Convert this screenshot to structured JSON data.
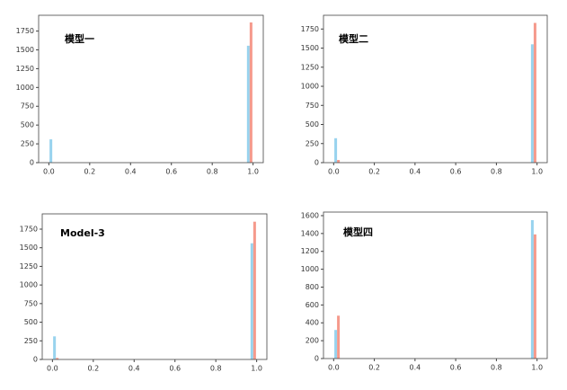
{
  "chart_data": [
    {
      "type": "histogram",
      "annotation": "模型一",
      "bins": [
        0,
        0.0333,
        0.0667,
        0.1,
        0.1333,
        0.1667,
        0.2,
        0.2333,
        0.2667,
        0.3,
        0.3333,
        0.3667,
        0.4,
        0.4333,
        0.4667,
        0.5,
        0.5333,
        0.5667,
        0.6,
        0.6333,
        0.6667,
        0.7,
        0.7333,
        0.7667,
        0.8,
        0.8333,
        0.8667,
        0.9,
        0.9333,
        0.9667,
        1
      ],
      "series": [
        {
          "color": "#98d3ee",
          "values": [
            310,
            0,
            0,
            0,
            0,
            0,
            0,
            0,
            0,
            0,
            0,
            0,
            0,
            0,
            0,
            0,
            0,
            0,
            0,
            0,
            0,
            0,
            0,
            0,
            0,
            0,
            0,
            0,
            0,
            1555
          ]
        },
        {
          "color": "#f59a8c",
          "values": [
            0,
            0,
            0,
            0,
            0,
            0,
            0,
            0,
            0,
            0,
            0,
            0,
            0,
            0,
            0,
            0,
            0,
            0,
            0,
            0,
            0,
            0,
            0,
            0,
            0,
            0,
            0,
            0,
            0,
            1865
          ]
        }
      ],
      "xlim": [
        -0.05,
        1.05
      ],
      "ylim": [
        0,
        1960
      ],
      "xticks": [
        {
          "value": 0,
          "label": "0.0"
        },
        0.2,
        0.4,
        0.6,
        0.8,
        {
          "value": 1,
          "label": "1.0"
        }
      ],
      "yticks": [
        0,
        250,
        500,
        750,
        1000,
        1250,
        1500,
        1750
      ]
    },
    {
      "type": "histogram",
      "annotation": "模型二",
      "bins": [
        0,
        0.0333,
        0.0667,
        0.1,
        0.1333,
        0.1667,
        0.2,
        0.2333,
        0.2667,
        0.3,
        0.3333,
        0.3667,
        0.4,
        0.4333,
        0.4667,
        0.5,
        0.5333,
        0.5667,
        0.6,
        0.6333,
        0.6667,
        0.7,
        0.7333,
        0.7667,
        0.8,
        0.8333,
        0.8667,
        0.9,
        0.9333,
        0.9667,
        1
      ],
      "series": [
        {
          "color": "#98d3ee",
          "values": [
            320,
            0,
            0,
            0,
            0,
            0,
            0,
            0,
            0,
            0,
            0,
            0,
            0,
            0,
            0,
            0,
            0,
            0,
            0,
            0,
            0,
            0,
            0,
            0,
            0,
            0,
            0,
            0,
            0,
            1550
          ]
        },
        {
          "color": "#f59a8c",
          "values": [
            35,
            0,
            0,
            0,
            0,
            0,
            0,
            0,
            0,
            0,
            0,
            0,
            0,
            0,
            0,
            0,
            0,
            0,
            0,
            0,
            0,
            0,
            0,
            0,
            0,
            0,
            0,
            0,
            0,
            1830
          ]
        }
      ],
      "xlim": [
        -0.05,
        1.05
      ],
      "ylim": [
        0,
        1930
      ],
      "xticks": [
        {
          "value": 0,
          "label": "0.0"
        },
        0.2,
        0.4,
        0.6,
        0.8,
        {
          "value": 1,
          "label": "1.0"
        }
      ],
      "yticks": [
        0,
        250,
        500,
        750,
        1000,
        1250,
        1500,
        1750
      ]
    },
    {
      "type": "histogram",
      "annotation": "Model-3",
      "bins": [
        0,
        0.0333,
        0.0667,
        0.1,
        0.1333,
        0.1667,
        0.2,
        0.2333,
        0.2667,
        0.3,
        0.3333,
        0.3667,
        0.4,
        0.4333,
        0.4667,
        0.5,
        0.5333,
        0.5667,
        0.6,
        0.6333,
        0.6667,
        0.7,
        0.7333,
        0.7667,
        0.8,
        0.8333,
        0.8667,
        0.9,
        0.9333,
        0.9667,
        1
      ],
      "series": [
        {
          "color": "#98d3ee",
          "values": [
            310,
            0,
            0,
            0,
            0,
            0,
            0,
            0,
            0,
            0,
            0,
            0,
            0,
            0,
            0,
            0,
            0,
            0,
            0,
            0,
            0,
            0,
            0,
            0,
            0,
            0,
            0,
            0,
            0,
            1560
          ]
        },
        {
          "color": "#f59a8c",
          "values": [
            20,
            0,
            0,
            0,
            0,
            0,
            0,
            0,
            0,
            0,
            0,
            0,
            0,
            0,
            0,
            0,
            0,
            0,
            0,
            0,
            0,
            0,
            0,
            0,
            0,
            0,
            0,
            0,
            0,
            1850
          ]
        }
      ],
      "xlim": [
        -0.05,
        1.05
      ],
      "ylim": [
        0,
        1955
      ],
      "xticks": [
        {
          "value": 0,
          "label": "0.0"
        },
        0.2,
        0.4,
        0.6,
        0.8,
        {
          "value": 1,
          "label": "1.0"
        }
      ],
      "yticks": [
        0,
        250,
        500,
        750,
        1000,
        1250,
        1500,
        1750
      ]
    },
    {
      "type": "histogram",
      "annotation": "模型四",
      "bins": [
        0,
        0.0333,
        0.0667,
        0.1,
        0.1333,
        0.1667,
        0.2,
        0.2333,
        0.2667,
        0.3,
        0.3333,
        0.3667,
        0.4,
        0.4333,
        0.4667,
        0.5,
        0.5333,
        0.5667,
        0.6,
        0.6333,
        0.6667,
        0.7,
        0.7333,
        0.7667,
        0.8,
        0.8333,
        0.8667,
        0.9,
        0.9333,
        0.9667,
        1
      ],
      "series": [
        {
          "color": "#98d3ee",
          "values": [
            320,
            0,
            0,
            0,
            0,
            0,
            0,
            0,
            0,
            0,
            0,
            0,
            0,
            0,
            0,
            0,
            0,
            0,
            0,
            0,
            0,
            0,
            0,
            0,
            0,
            0,
            0,
            0,
            0,
            1550
          ]
        },
        {
          "color": "#f59a8c",
          "values": [
            480,
            0,
            0,
            0,
            0,
            0,
            0,
            0,
            0,
            0,
            0,
            0,
            0,
            0,
            0,
            0,
            0,
            0,
            0,
            0,
            0,
            0,
            0,
            0,
            0,
            0,
            0,
            0,
            0,
            1390
          ]
        }
      ],
      "xlim": [
        -0.05,
        1.05
      ],
      "ylim": [
        0,
        1640
      ],
      "xticks": [
        {
          "value": 0,
          "label": "0.0"
        },
        0.2,
        0.4,
        0.6,
        0.8,
        {
          "value": 1,
          "label": "1.0"
        }
      ],
      "yticks": [
        0,
        200,
        400,
        600,
        800,
        1000,
        1200,
        1400,
        1600
      ]
    }
  ]
}
